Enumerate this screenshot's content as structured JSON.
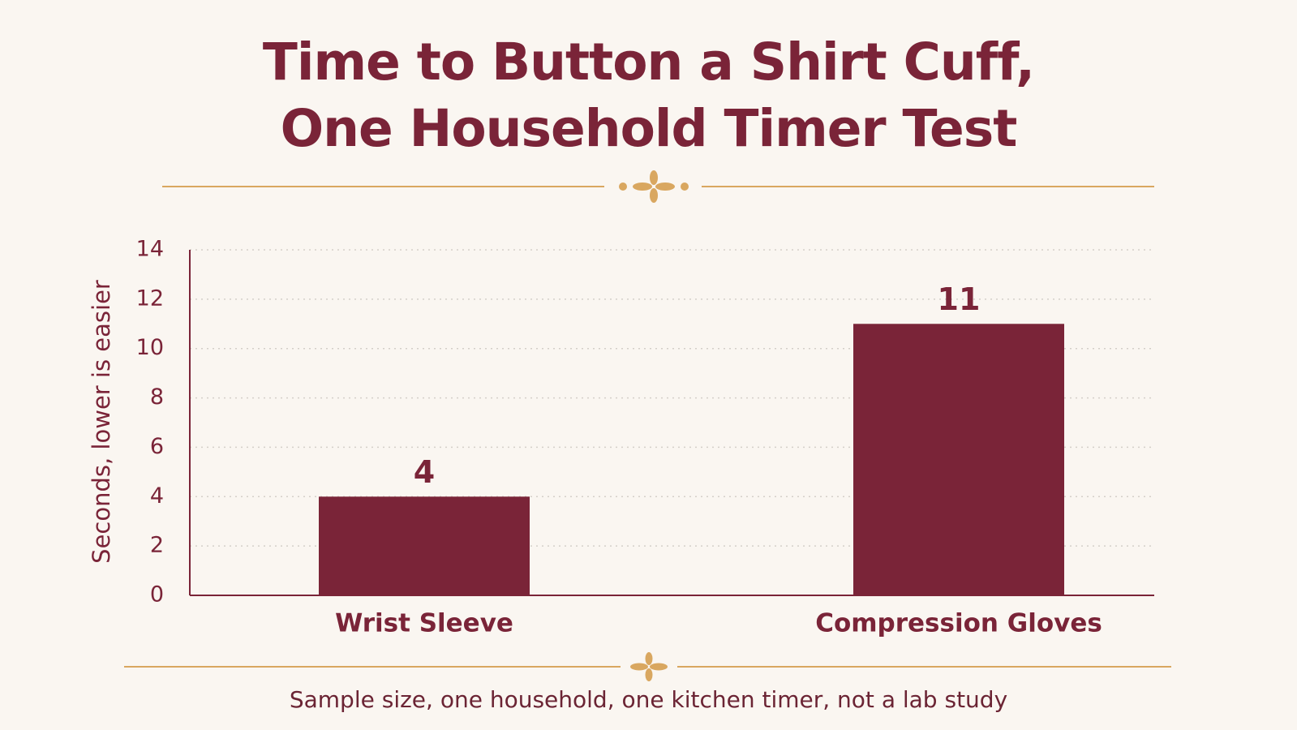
{
  "title": {
    "line1": "Time to Button a Shirt Cuff,",
    "line2": "One Household Timer Test"
  },
  "footnote": "Sample size, one household, one kitchen timer, not a lab study",
  "colors": {
    "background": "#faf6f1",
    "bar": "#7a2438",
    "title": "#7a2438",
    "axis": "#7a2438",
    "ornament": "#d9a760",
    "grid": "#d4cfc9"
  },
  "chart_data": {
    "type": "bar",
    "categories": [
      "Wrist Sleeve",
      "Compression Gloves"
    ],
    "values": [
      4,
      11
    ],
    "data_labels": [
      "4",
      "11"
    ],
    "title": "Time to Button a Shirt Cuff, One Household Timer Test",
    "xlabel": "",
    "ylabel": "Seconds, lower is easier",
    "ylim": [
      0,
      14
    ],
    "yticks": [
      0,
      2,
      4,
      6,
      8,
      10,
      12,
      14
    ],
    "grid": true,
    "legend": "none"
  }
}
